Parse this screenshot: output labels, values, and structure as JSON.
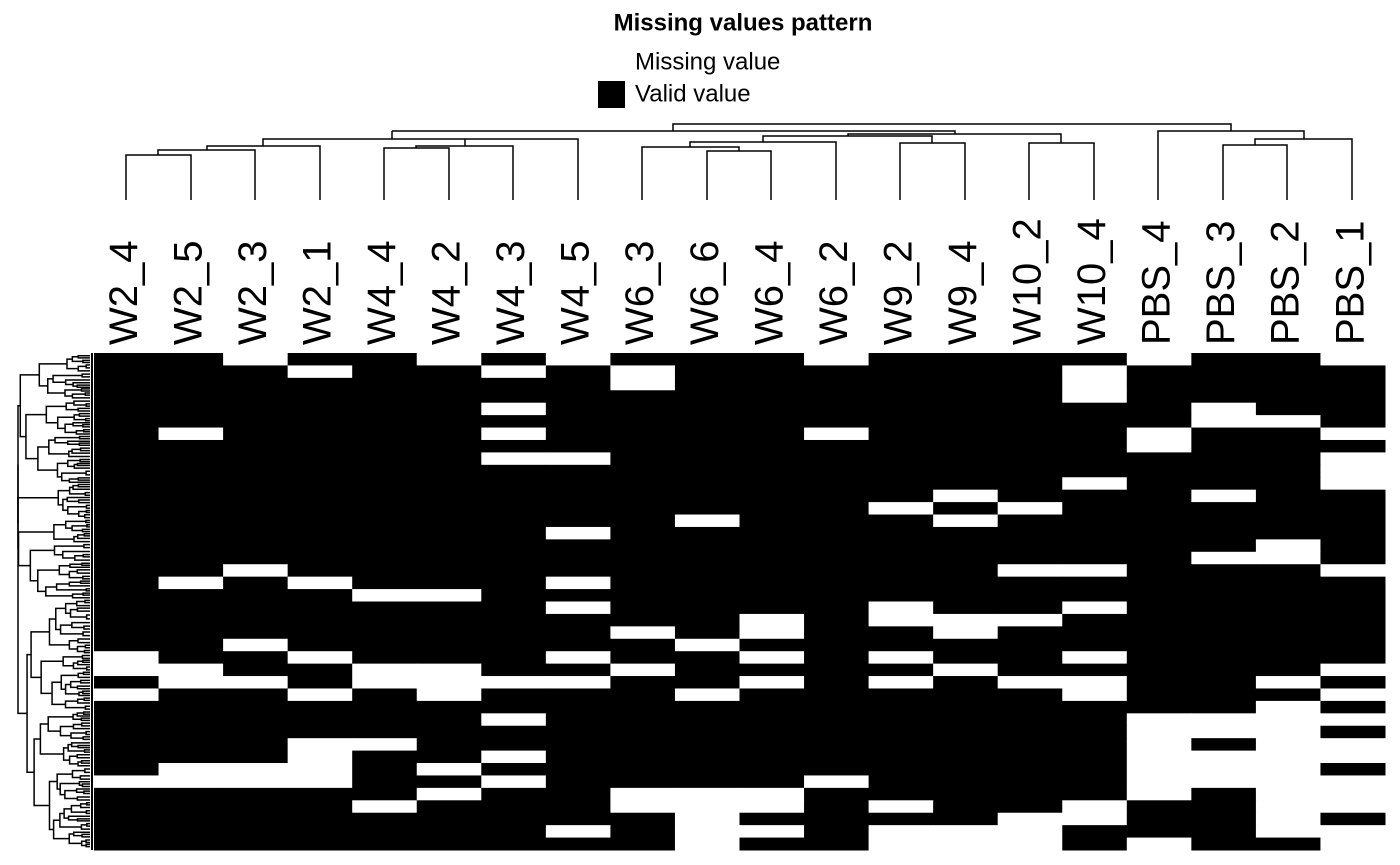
{
  "chart_data": {
    "type": "heatmap",
    "title": "Missing values pattern",
    "legend": [
      {
        "label": "Missing value",
        "color": "#ffffff"
      },
      {
        "label": "Valid value",
        "color": "#000000"
      }
    ],
    "x": [
      "W2_4",
      "W2_5",
      "W2_3",
      "W2_1",
      "W4_4",
      "W4_2",
      "W4_3",
      "W4_5",
      "W6_3",
      "W6_6",
      "W6_4",
      "W6_2",
      "W9_2",
      "W9_4",
      "W10_2",
      "W10_4",
      "PBS_4",
      "PBS_3",
      "PBS_2",
      "PBS_1"
    ],
    "values": [
      [
        1,
        1,
        0,
        1,
        1,
        0,
        1,
        0,
        1,
        1,
        1,
        0,
        1,
        1,
        1,
        1,
        0,
        1,
        1,
        0
      ],
      [
        1,
        1,
        1,
        0,
        1,
        1,
        0,
        1,
        0,
        1,
        1,
        1,
        1,
        1,
        1,
        0,
        1,
        1,
        1,
        1
      ],
      [
        1,
        1,
        1,
        1,
        1,
        1,
        1,
        1,
        0,
        1,
        1,
        1,
        1,
        1,
        1,
        0,
        1,
        1,
        1,
        1
      ],
      [
        1,
        1,
        1,
        1,
        1,
        1,
        1,
        1,
        1,
        1,
        1,
        1,
        1,
        1,
        1,
        0,
        1,
        1,
        1,
        1
      ],
      [
        1,
        1,
        1,
        1,
        1,
        1,
        0,
        1,
        1,
        1,
        1,
        1,
        1,
        1,
        1,
        1,
        1,
        0,
        1,
        1
      ],
      [
        1,
        1,
        1,
        1,
        1,
        1,
        1,
        1,
        1,
        1,
        1,
        1,
        1,
        1,
        1,
        1,
        1,
        0,
        0,
        1
      ],
      [
        1,
        0,
        1,
        1,
        1,
        1,
        0,
        1,
        1,
        1,
        1,
        0,
        1,
        1,
        1,
        1,
        0,
        1,
        1,
        0
      ],
      [
        1,
        1,
        1,
        1,
        1,
        1,
        1,
        1,
        1,
        1,
        1,
        1,
        1,
        1,
        1,
        1,
        0,
        1,
        1,
        1
      ],
      [
        1,
        1,
        1,
        1,
        1,
        1,
        0,
        0,
        1,
        1,
        1,
        1,
        1,
        1,
        1,
        1,
        1,
        1,
        1,
        0
      ],
      [
        1,
        1,
        1,
        1,
        1,
        1,
        1,
        1,
        1,
        1,
        1,
        1,
        1,
        1,
        1,
        1,
        1,
        1,
        1,
        0
      ],
      [
        1,
        1,
        1,
        1,
        1,
        1,
        1,
        1,
        1,
        1,
        1,
        1,
        1,
        1,
        1,
        0,
        1,
        1,
        1,
        0
      ],
      [
        1,
        1,
        1,
        1,
        1,
        1,
        1,
        1,
        1,
        1,
        1,
        1,
        1,
        0,
        1,
        1,
        1,
        0,
        1,
        1
      ],
      [
        1,
        1,
        1,
        1,
        1,
        1,
        1,
        1,
        1,
        1,
        1,
        1,
        0,
        1,
        0,
        1,
        1,
        1,
        1,
        1
      ],
      [
        1,
        1,
        1,
        1,
        1,
        1,
        1,
        1,
        1,
        0,
        1,
        1,
        1,
        0,
        1,
        1,
        1,
        1,
        1,
        1
      ],
      [
        1,
        1,
        1,
        1,
        1,
        1,
        1,
        0,
        1,
        1,
        1,
        1,
        1,
        1,
        1,
        1,
        1,
        1,
        1,
        1
      ],
      [
        1,
        1,
        1,
        1,
        1,
        1,
        1,
        1,
        1,
        1,
        1,
        1,
        1,
        1,
        1,
        1,
        1,
        1,
        0,
        1
      ],
      [
        1,
        1,
        1,
        1,
        1,
        1,
        1,
        1,
        1,
        1,
        1,
        1,
        1,
        1,
        1,
        1,
        1,
        0,
        0,
        1
      ],
      [
        1,
        1,
        0,
        1,
        1,
        1,
        1,
        1,
        1,
        1,
        1,
        1,
        1,
        1,
        0,
        0,
        1,
        1,
        1,
        0
      ],
      [
        1,
        0,
        1,
        0,
        1,
        1,
        1,
        0,
        1,
        1,
        1,
        1,
        1,
        1,
        1,
        1,
        1,
        1,
        1,
        1
      ],
      [
        1,
        1,
        1,
        1,
        0,
        0,
        1,
        1,
        1,
        1,
        1,
        1,
        1,
        1,
        1,
        1,
        1,
        1,
        1,
        1
      ],
      [
        1,
        1,
        1,
        1,
        1,
        1,
        1,
        0,
        1,
        1,
        1,
        1,
        0,
        1,
        1,
        0,
        1,
        1,
        1,
        1
      ],
      [
        1,
        1,
        1,
        1,
        1,
        1,
        1,
        1,
        1,
        1,
        0,
        1,
        0,
        0,
        0,
        1,
        1,
        1,
        1,
        1
      ],
      [
        1,
        1,
        1,
        1,
        1,
        1,
        1,
        1,
        0,
        1,
        0,
        1,
        1,
        0,
        1,
        1,
        1,
        1,
        1,
        1
      ],
      [
        1,
        1,
        0,
        1,
        1,
        1,
        1,
        1,
        1,
        0,
        1,
        1,
        1,
        1,
        1,
        1,
        1,
        1,
        1,
        1
      ],
      [
        0,
        1,
        1,
        0,
        1,
        1,
        1,
        0,
        1,
        1,
        0,
        1,
        0,
        1,
        1,
        0,
        1,
        1,
        1,
        1
      ],
      [
        0,
        0,
        1,
        1,
        0,
        0,
        1,
        1,
        0,
        1,
        1,
        1,
        1,
        0,
        1,
        1,
        1,
        1,
        1,
        0
      ],
      [
        1,
        0,
        0,
        1,
        0,
        0,
        0,
        0,
        1,
        1,
        0,
        1,
        0,
        1,
        0,
        0,
        1,
        1,
        0,
        1
      ],
      [
        0,
        1,
        1,
        0,
        1,
        0,
        1,
        1,
        1,
        0,
        1,
        1,
        1,
        1,
        1,
        0,
        1,
        1,
        1,
        0
      ],
      [
        1,
        1,
        1,
        1,
        1,
        1,
        1,
        1,
        1,
        1,
        1,
        1,
        1,
        1,
        1,
        1,
        1,
        1,
        0,
        1
      ],
      [
        1,
        1,
        1,
        1,
        1,
        1,
        0,
        1,
        1,
        1,
        1,
        1,
        1,
        1,
        1,
        1,
        0,
        0,
        0,
        0
      ],
      [
        1,
        1,
        1,
        1,
        1,
        1,
        1,
        1,
        1,
        1,
        1,
        1,
        1,
        1,
        1,
        1,
        0,
        0,
        0,
        1
      ],
      [
        1,
        1,
        1,
        0,
        0,
        1,
        1,
        1,
        1,
        1,
        1,
        1,
        1,
        1,
        1,
        1,
        0,
        1,
        0,
        0
      ],
      [
        1,
        1,
        1,
        0,
        1,
        1,
        0,
        1,
        1,
        1,
        1,
        1,
        1,
        1,
        1,
        1,
        0,
        0,
        0,
        0
      ],
      [
        1,
        0,
        0,
        0,
        1,
        0,
        1,
        1,
        1,
        1,
        1,
        1,
        1,
        1,
        1,
        1,
        0,
        0,
        0,
        1
      ],
      [
        0,
        0,
        0,
        0,
        1,
        1,
        0,
        1,
        1,
        1,
        1,
        0,
        1,
        1,
        1,
        1,
        0,
        0,
        0,
        0
      ],
      [
        1,
        1,
        1,
        1,
        1,
        0,
        1,
        1,
        0,
        0,
        0,
        1,
        1,
        1,
        1,
        1,
        0,
        1,
        0,
        0
      ],
      [
        1,
        1,
        1,
        1,
        0,
        1,
        1,
        1,
        0,
        0,
        0,
        1,
        0,
        1,
        1,
        0,
        1,
        1,
        0,
        0
      ],
      [
        1,
        1,
        1,
        1,
        1,
        1,
        1,
        1,
        1,
        0,
        1,
        1,
        1,
        1,
        0,
        0,
        1,
        1,
        0,
        1
      ],
      [
        1,
        1,
        1,
        1,
        1,
        1,
        1,
        0,
        1,
        0,
        0,
        1,
        0,
        0,
        0,
        1,
        1,
        1,
        0,
        0
      ],
      [
        1,
        1,
        1,
        1,
        1,
        1,
        1,
        1,
        1,
        0,
        1,
        1,
        0,
        0,
        0,
        1,
        0,
        1,
        1,
        0
      ]
    ]
  }
}
